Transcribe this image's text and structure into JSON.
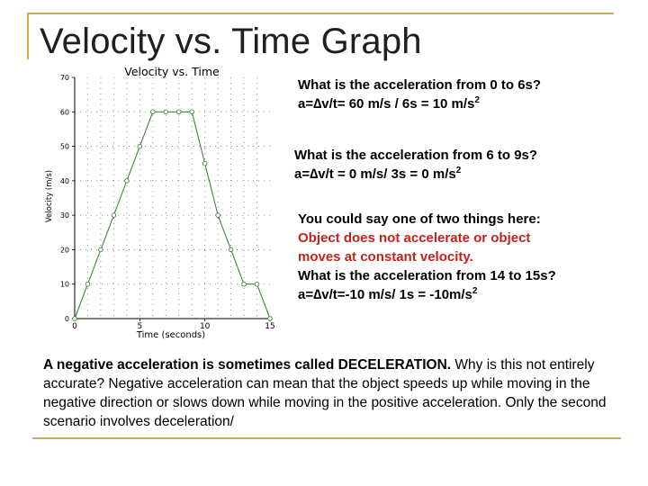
{
  "slide": {
    "title": "Velocity vs. Time Graph",
    "accent_color": "#c8b245"
  },
  "qa1": {
    "question": "What is the acceleration from 0 to 6s?",
    "answer_main": "a=∆v/t= 60 m/s / 6s = 10 m/s",
    "answer_sup": "2"
  },
  "qa2": {
    "question": "What is the acceleration from 6 to 9s?",
    "answer_main": "a=∆v/t = 0 m/s/ 3s = 0 m/s",
    "answer_sup": "2"
  },
  "qa3": {
    "intro": "You could say one of two things here:",
    "highlight_line1": "Object does not accelerate or object",
    "highlight_line2": "moves at constant velocity.",
    "question": "What is the acceleration from 14 to 15s?",
    "answer_main": "a=∆v/t=-10 m/s/ 1s = -10m/s",
    "answer_sup": "2"
  },
  "paragraph": {
    "lead_bold": "A negative acceleration is sometimes called DECELERATION.",
    "rest": " Why is this not entirely accurate? Negative acceleration can mean that the object speeds up while moving in the negative direction or slows down while moving in the positive acceleration. Only the second scenario involves deceleration/"
  },
  "chart_data": {
    "type": "line",
    "title": "Velocity vs. Time",
    "xlabel": "Time (seconds)",
    "ylabel": "Velocity (m/s)",
    "xlim": [
      0,
      15
    ],
    "ylim": [
      0,
      70
    ],
    "xticks": [
      0,
      5,
      10,
      15
    ],
    "yticks": [
      0,
      10,
      20,
      30,
      40,
      50,
      60,
      70
    ],
    "grid": "dotted",
    "line_color": "#3a8a3a",
    "x": [
      0,
      1,
      2,
      3,
      4,
      5,
      6,
      7,
      8,
      9,
      10,
      11,
      12,
      13,
      14,
      15
    ],
    "y": [
      0,
      10,
      20,
      30,
      40,
      50,
      60,
      60,
      60,
      60,
      45,
      30,
      20,
      10,
      10,
      0
    ]
  }
}
